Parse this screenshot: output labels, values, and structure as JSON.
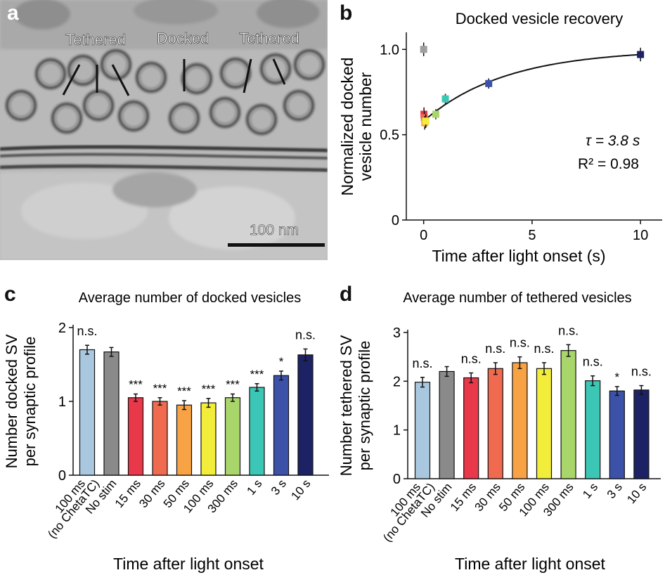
{
  "panels": {
    "a": "a",
    "b": "b",
    "c": "c",
    "d": "d"
  },
  "micrograph": {
    "labels": [
      "Tethered",
      "Docked",
      "Tethered"
    ],
    "scale_bar": "100 nm"
  },
  "colors": {
    "100ms_noCheta": "#a9c8df",
    "nostim": "#8a8a8a",
    "15ms": "#e8384a",
    "30ms": "#f06a50",
    "50ms": "#f7a244",
    "100ms": "#f2ec3a",
    "300ms": "#a9d66b",
    "1s": "#3cc6b5",
    "3s": "#3c52a8",
    "10s": "#1c2264"
  },
  "chart_data": [
    {
      "id": "b",
      "type": "scatter",
      "title": "Docked vesicle recovery",
      "xlabel": "Time after light onset (s)",
      "ylabel": "Normalized docked vesicle number",
      "xlim": [
        -0.8,
        11
      ],
      "ylim": [
        0,
        1.1
      ],
      "xticks": [
        0,
        5,
        10
      ],
      "yticks": [
        0,
        0.5,
        1.0
      ],
      "ytick_labels": [
        "0",
        "0.5",
        "1.0"
      ],
      "points": [
        {
          "x": 0,
          "y": 1.0,
          "err": 0.04,
          "color": "#9e9e9e"
        },
        {
          "x": 0.015,
          "y": 0.62,
          "err": 0.04,
          "color": "#e8384a"
        },
        {
          "x": 0.03,
          "y": 0.6,
          "err": 0.04,
          "color": "#f06a50"
        },
        {
          "x": 0.05,
          "y": 0.57,
          "err": 0.04,
          "color": "#f7a244"
        },
        {
          "x": 0.1,
          "y": 0.58,
          "err": 0.04,
          "color": "#f2ec3a"
        },
        {
          "x": 0.3,
          "y": 0.62,
          "err": 0.03,
          "color": "#a9d66b"
        },
        {
          "x": 1,
          "y": 0.71,
          "err": 0.03,
          "color": "#3cc6b5"
        },
        {
          "x": 3,
          "y": 0.8,
          "err": 0.03,
          "color": "#3c52a8"
        },
        {
          "x": 10,
          "y": 0.97,
          "err": 0.04,
          "color": "#1c2264"
        }
      ],
      "fit": {
        "tau": 3.8,
        "y0": 0.58,
        "yinf": 1.0
      },
      "annotations": [
        "τ = 3.8 s",
        "R² = 0.98"
      ]
    },
    {
      "id": "c",
      "type": "bar",
      "title": "Average number of docked vesicles",
      "xlabel": "Time after light onset",
      "ylabel": [
        "Number docked SV",
        "per synaptic profile"
      ],
      "ylim": [
        0,
        2
      ],
      "yticks": [
        0,
        1,
        2
      ],
      "categories": [
        "100 ms\n(no ChetaTC)",
        "No stim",
        "15 ms",
        "30 ms",
        "50 ms",
        "100 ms",
        "300 ms",
        "1 s",
        "3 s",
        "10 s"
      ],
      "values": [
        1.7,
        1.67,
        1.05,
        1.0,
        0.95,
        0.98,
        1.05,
        1.19,
        1.35,
        1.63
      ],
      "errors": [
        0.06,
        0.06,
        0.05,
        0.05,
        0.06,
        0.06,
        0.05,
        0.05,
        0.06,
        0.08
      ],
      "significance": [
        "n.s.",
        "",
        "***",
        "***",
        "***",
        "***",
        "***",
        "***",
        "*",
        "n.s."
      ]
    },
    {
      "id": "d",
      "type": "bar",
      "title": "Average number of tethered vesicles",
      "xlabel": "Time after light onset",
      "ylabel": [
        "Number tethered SV",
        "per synaptic profile"
      ],
      "ylim": [
        0,
        3
      ],
      "yticks": [
        0,
        1,
        2,
        3
      ],
      "categories": [
        "100 ms\n(no ChetaTC)",
        "No stim",
        "15 ms",
        "30 ms",
        "50 ms",
        "100 ms",
        "300 ms",
        "1 s",
        "3 s",
        "10 s"
      ],
      "values": [
        1.98,
        2.2,
        2.07,
        2.26,
        2.38,
        2.26,
        2.63,
        2.01,
        1.8,
        1.82
      ],
      "errors": [
        0.1,
        0.1,
        0.1,
        0.12,
        0.12,
        0.12,
        0.12,
        0.1,
        0.09,
        0.09
      ],
      "significance": [
        "n.s.",
        "",
        "n.s.",
        "n.s.",
        "n.s.",
        "n.s.",
        "n.s.",
        "n.s.",
        "*",
        "n.s."
      ]
    }
  ]
}
